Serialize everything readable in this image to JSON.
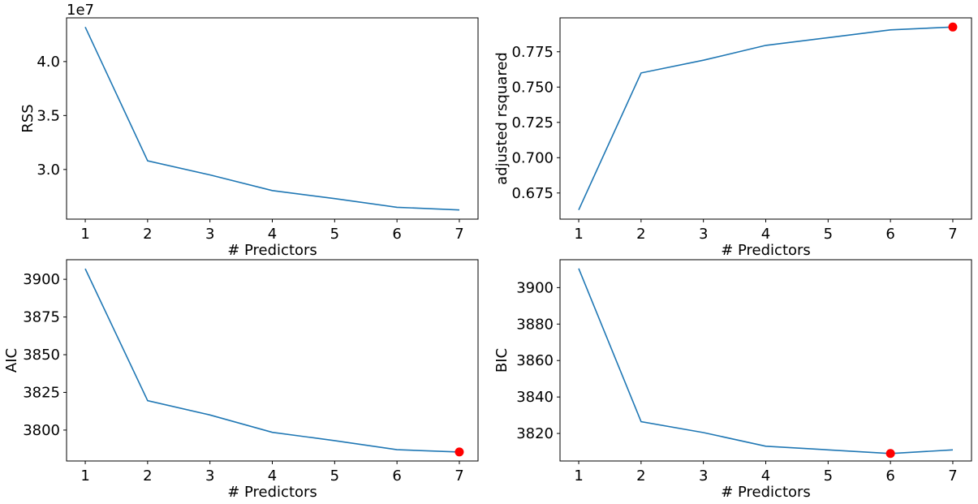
{
  "chart_data": [
    {
      "type": "line",
      "x": [
        1,
        2,
        3,
        4,
        5,
        6,
        7
      ],
      "y": [
        43200000,
        30800000,
        29500000,
        28050000,
        27300000,
        26500000,
        26250000
      ],
      "xlabel": "# Predictors",
      "ylabel": "RSS",
      "xticks": [
        1,
        2,
        3,
        4,
        5,
        6,
        7
      ],
      "yticks": [
        30000000,
        35000000,
        40000000
      ],
      "ytick_labels": [
        "3.0",
        "3.5",
        "4.0"
      ],
      "offset_text": "1e7",
      "xlim": [
        0.7,
        7.3
      ],
      "ylim": [
        25400000,
        44050000
      ],
      "line_color": "#1f77b4",
      "highlight": null,
      "grid": false
    },
    {
      "type": "line",
      "x": [
        1,
        2,
        3,
        4,
        5,
        6,
        7
      ],
      "y": [
        0.663,
        0.76,
        0.769,
        0.7795,
        0.785,
        0.7905,
        0.7925
      ],
      "xlabel": "# Predictors",
      "ylabel": "adjusted rsquared",
      "xticks": [
        1,
        2,
        3,
        4,
        5,
        6,
        7
      ],
      "yticks": [
        0.675,
        0.7,
        0.725,
        0.75,
        0.775
      ],
      "ytick_labels": [
        "0.675",
        "0.700",
        "0.725",
        "0.750",
        "0.775"
      ],
      "offset_text": "",
      "xlim": [
        0.7,
        7.3
      ],
      "ylim": [
        0.6565,
        0.799
      ],
      "line_color": "#1f77b4",
      "highlight": {
        "x": 7,
        "y": 0.7925,
        "color": "#ff0000"
      },
      "grid": false
    },
    {
      "type": "line",
      "x": [
        1,
        2,
        3,
        4,
        5,
        6,
        7
      ],
      "y": [
        3907,
        3819.5,
        3810,
        3798.5,
        3793,
        3787,
        3785.5
      ],
      "xlabel": "# Predictors",
      "ylabel": "AIC",
      "xticks": [
        1,
        2,
        3,
        4,
        5,
        6,
        7
      ],
      "yticks": [
        3800,
        3825,
        3850,
        3875,
        3900
      ],
      "ytick_labels": [
        "3800",
        "3825",
        "3850",
        "3875",
        "3900"
      ],
      "offset_text": "",
      "xlim": [
        0.7,
        7.3
      ],
      "ylim": [
        3779.5,
        3913
      ],
      "line_color": "#1f77b4",
      "highlight": {
        "x": 7,
        "y": 3785.5,
        "color": "#ff0000"
      },
      "grid": false
    },
    {
      "type": "line",
      "x": [
        1,
        2,
        3,
        4,
        5,
        6,
        7
      ],
      "y": [
        3910.5,
        3826.5,
        3820.5,
        3813,
        3811,
        3809,
        3811
      ],
      "xlabel": "# Predictors",
      "ylabel": "BIC",
      "xticks": [
        1,
        2,
        3,
        4,
        5,
        6,
        7
      ],
      "yticks": [
        3820,
        3840,
        3860,
        3880,
        3900
      ],
      "ytick_labels": [
        "3820",
        "3840",
        "3860",
        "3880",
        "3900"
      ],
      "offset_text": "",
      "xlim": [
        0.7,
        7.3
      ],
      "ylim": [
        3804.9,
        3915.3
      ],
      "line_color": "#1f77b4",
      "highlight": {
        "x": 6,
        "y": 3809,
        "color": "#ff0000"
      },
      "grid": false
    }
  ]
}
